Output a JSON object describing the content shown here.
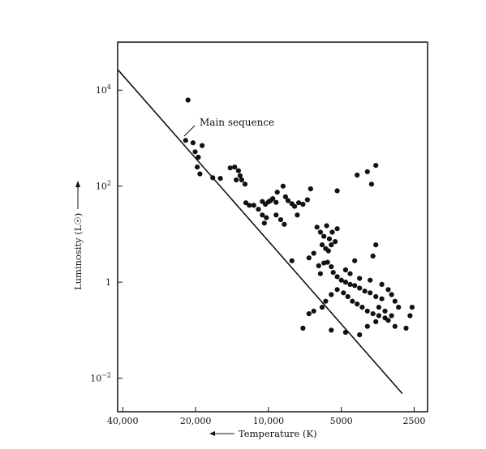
{
  "chart_data": {
    "type": "scatter",
    "title": "",
    "xlabel": "Temperature (K)",
    "ylabel": "Luminosity (L☉)",
    "x_scale": "log",
    "x_reversed": true,
    "y_scale": "log",
    "xlim": [
      42000,
      2200
    ],
    "ylim": [
      0.002,
      100000
    ],
    "grid": false,
    "x_ticks": [
      {
        "value": 40000,
        "label": "40,000"
      },
      {
        "value": 20000,
        "label": "20,000"
      },
      {
        "value": 10000,
        "label": "10,000"
      },
      {
        "value": 5000,
        "label": "5000"
      },
      {
        "value": 2500,
        "label": "2500"
      }
    ],
    "y_ticks": [
      {
        "value": 10000,
        "base": "10",
        "exp": "4"
      },
      {
        "value": 100,
        "base": "10",
        "exp": "2"
      },
      {
        "value": 1,
        "base": "1",
        "exp": ""
      },
      {
        "value": 0.01,
        "base": "10",
        "exp": "−2"
      }
    ],
    "annotation": "Main sequence",
    "main_sequence_line": [
      {
        "x": 42000,
        "y": 27000
      },
      {
        "x": 2800,
        "y": 0.0048
      }
    ],
    "points": [
      {
        "x": 21500,
        "y": 6200
      },
      {
        "x": 22000,
        "y": 900
      },
      {
        "x": 20500,
        "y": 800
      },
      {
        "x": 18800,
        "y": 700
      },
      {
        "x": 20100,
        "y": 520
      },
      {
        "x": 19500,
        "y": 400
      },
      {
        "x": 19700,
        "y": 250
      },
      {
        "x": 19200,
        "y": 180
      },
      {
        "x": 17000,
        "y": 150
      },
      {
        "x": 14400,
        "y": 240
      },
      {
        "x": 13800,
        "y": 250
      },
      {
        "x": 13300,
        "y": 210
      },
      {
        "x": 13100,
        "y": 165
      },
      {
        "x": 13600,
        "y": 135
      },
      {
        "x": 12900,
        "y": 135
      },
      {
        "x": 12500,
        "y": 110
      },
      {
        "x": 15800,
        "y": 145
      },
      {
        "x": 12400,
        "y": 45
      },
      {
        "x": 12000,
        "y": 40
      },
      {
        "x": 11500,
        "y": 40
      },
      {
        "x": 11000,
        "y": 33
      },
      {
        "x": 10600,
        "y": 25
      },
      {
        "x": 10200,
        "y": 22
      },
      {
        "x": 10400,
        "y": 17
      },
      {
        "x": 10000,
        "y": 47
      },
      {
        "x": 9800,
        "y": 50
      },
      {
        "x": 9600,
        "y": 55
      },
      {
        "x": 9300,
        "y": 46
      },
      {
        "x": 10600,
        "y": 48
      },
      {
        "x": 10300,
        "y": 42
      },
      {
        "x": 9200,
        "y": 75
      },
      {
        "x": 8700,
        "y": 100
      },
      {
        "x": 8500,
        "y": 60
      },
      {
        "x": 8300,
        "y": 50
      },
      {
        "x": 8000,
        "y": 43
      },
      {
        "x": 7800,
        "y": 38
      },
      {
        "x": 7500,
        "y": 45
      },
      {
        "x": 7200,
        "y": 42
      },
      {
        "x": 6900,
        "y": 52
      },
      {
        "x": 9300,
        "y": 25
      },
      {
        "x": 8900,
        "y": 20
      },
      {
        "x": 8600,
        "y": 16
      },
      {
        "x": 7600,
        "y": 25
      },
      {
        "x": 6700,
        "y": 88
      },
      {
        "x": 6300,
        "y": 14
      },
      {
        "x": 6100,
        "y": 11
      },
      {
        "x": 5900,
        "y": 9
      },
      {
        "x": 5750,
        "y": 15
      },
      {
        "x": 5600,
        "y": 8
      },
      {
        "x": 5450,
        "y": 11
      },
      {
        "x": 6000,
        "y": 6
      },
      {
        "x": 5800,
        "y": 5
      },
      {
        "x": 5650,
        "y": 4.5
      },
      {
        "x": 5500,
        "y": 6
      },
      {
        "x": 5300,
        "y": 7
      },
      {
        "x": 5200,
        "y": 13
      },
      {
        "x": 6500,
        "y": 4
      },
      {
        "x": 6800,
        "y": 3.2
      },
      {
        "x": 8000,
        "y": 2.8
      },
      {
        "x": 6200,
        "y": 2.2
      },
      {
        "x": 5900,
        "y": 2.5
      },
      {
        "x": 5700,
        "y": 2.6
      },
      {
        "x": 5500,
        "y": 2.1
      },
      {
        "x": 5400,
        "y": 1.6
      },
      {
        "x": 6100,
        "y": 1.5
      },
      {
        "x": 5200,
        "y": 1.3
      },
      {
        "x": 5000,
        "y": 1.1
      },
      {
        "x": 4800,
        "y": 1.0
      },
      {
        "x": 4600,
        "y": 0.9
      },
      {
        "x": 4400,
        "y": 0.85
      },
      {
        "x": 4200,
        "y": 0.75
      },
      {
        "x": 4000,
        "y": 0.65
      },
      {
        "x": 3800,
        "y": 0.6
      },
      {
        "x": 3600,
        "y": 0.5
      },
      {
        "x": 3400,
        "y": 0.45
      },
      {
        "x": 4900,
        "y": 0.6
      },
      {
        "x": 4700,
        "y": 0.5
      },
      {
        "x": 4500,
        "y": 0.4
      },
      {
        "x": 4300,
        "y": 0.35
      },
      {
        "x": 4100,
        "y": 0.3
      },
      {
        "x": 3900,
        "y": 0.25
      },
      {
        "x": 3700,
        "y": 0.22
      },
      {
        "x": 3500,
        "y": 0.2
      },
      {
        "x": 3300,
        "y": 0.18
      },
      {
        "x": 5200,
        "y": 0.7
      },
      {
        "x": 5500,
        "y": 0.55
      },
      {
        "x": 5800,
        "y": 0.4
      },
      {
        "x": 6000,
        "y": 0.3
      },
      {
        "x": 6500,
        "y": 0.25
      },
      {
        "x": 6800,
        "y": 0.22
      },
      {
        "x": 7200,
        "y": 0.11
      },
      {
        "x": 5500,
        "y": 0.1
      },
      {
        "x": 4800,
        "y": 0.09
      },
      {
        "x": 4200,
        "y": 0.08
      },
      {
        "x": 3900,
        "y": 0.12
      },
      {
        "x": 3600,
        "y": 0.15
      },
      {
        "x": 3200,
        "y": 0.16
      },
      {
        "x": 3000,
        "y": 0.12
      },
      {
        "x": 2700,
        "y": 0.11
      },
      {
        "x": 2600,
        "y": 0.2
      },
      {
        "x": 2550,
        "y": 0.3
      },
      {
        "x": 3600,
        "y": 6.0
      },
      {
        "x": 3700,
        "y": 3.5
      },
      {
        "x": 4400,
        "y": 2.8
      },
      {
        "x": 4800,
        "y": 1.8
      },
      {
        "x": 4600,
        "y": 1.5
      },
      {
        "x": 4200,
        "y": 1.2
      },
      {
        "x": 3800,
        "y": 1.1
      },
      {
        "x": 3400,
        "y": 0.9
      },
      {
        "x": 3200,
        "y": 0.7
      },
      {
        "x": 3100,
        "y": 0.55
      },
      {
        "x": 3000,
        "y": 0.4
      },
      {
        "x": 2900,
        "y": 0.3
      },
      {
        "x": 3500,
        "y": 0.3
      },
      {
        "x": 3300,
        "y": 0.25
      },
      {
        "x": 3100,
        "y": 0.2
      },
      {
        "x": 4300,
        "y": 170
      },
      {
        "x": 3900,
        "y": 200
      },
      {
        "x": 3600,
        "y": 270
      },
      {
        "x": 3750,
        "y": 110
      },
      {
        "x": 5200,
        "y": 80
      }
    ]
  }
}
